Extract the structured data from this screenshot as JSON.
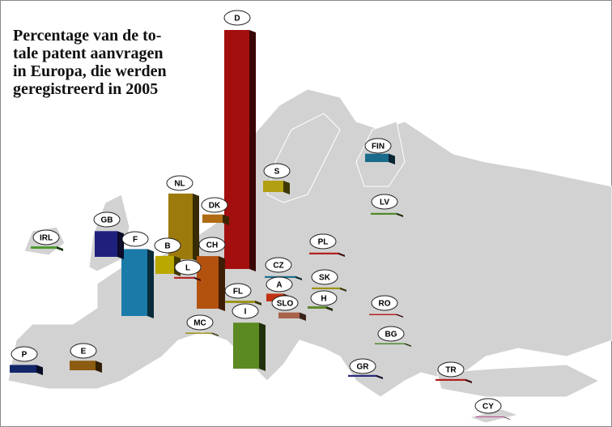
{
  "chart_data": {
    "type": "bar",
    "title": [
      "Percentage van de to-",
      "tale patent aanvragen",
      "in Europa, die werden",
      "geregistreerd in 2005"
    ],
    "categories": [
      "D",
      "NL",
      "F",
      "CH",
      "I",
      "GB",
      "B",
      "S",
      "FIN",
      "DK",
      "A",
      "P",
      "E",
      "SLO",
      "H",
      "SK",
      "CZ",
      "PL",
      "LV",
      "IRL",
      "L",
      "FL",
      "MC",
      "RO",
      "BG",
      "GR",
      "TR",
      "CY"
    ],
    "values": [
      40,
      11,
      11.2,
      8.8,
      7.7,
      4.3,
      3,
      1.9,
      1.4,
      1.4,
      1.3,
      1.3,
      1.6,
      1,
      0.4,
      0.3,
      0.3,
      0.3,
      0.3,
      0.4,
      0.3,
      0.4,
      0.2,
      0.2,
      0.2,
      0.3,
      0.3,
      0.1
    ],
    "colors": [
      "#a30f0f",
      "#9c7a0c",
      "#1b7aa8",
      "#b3520f",
      "#5b8a22",
      "#1f1f7c",
      "#b9a800",
      "#b2a012",
      "#1a6b8c",
      "#b06b12",
      "#c23212",
      "#13266a",
      "#8c5c12",
      "#a8624a",
      "#5f8a28",
      "#9c9418",
      "#1f6f8e",
      "#b32020",
      "#4f8a28",
      "#4f9a30",
      "#b32828",
      "#9c9418",
      "#9c9418",
      "#b32020",
      "#4f8a28",
      "#2a2a7a",
      "#b32020",
      "#b0207a"
    ]
  }
}
